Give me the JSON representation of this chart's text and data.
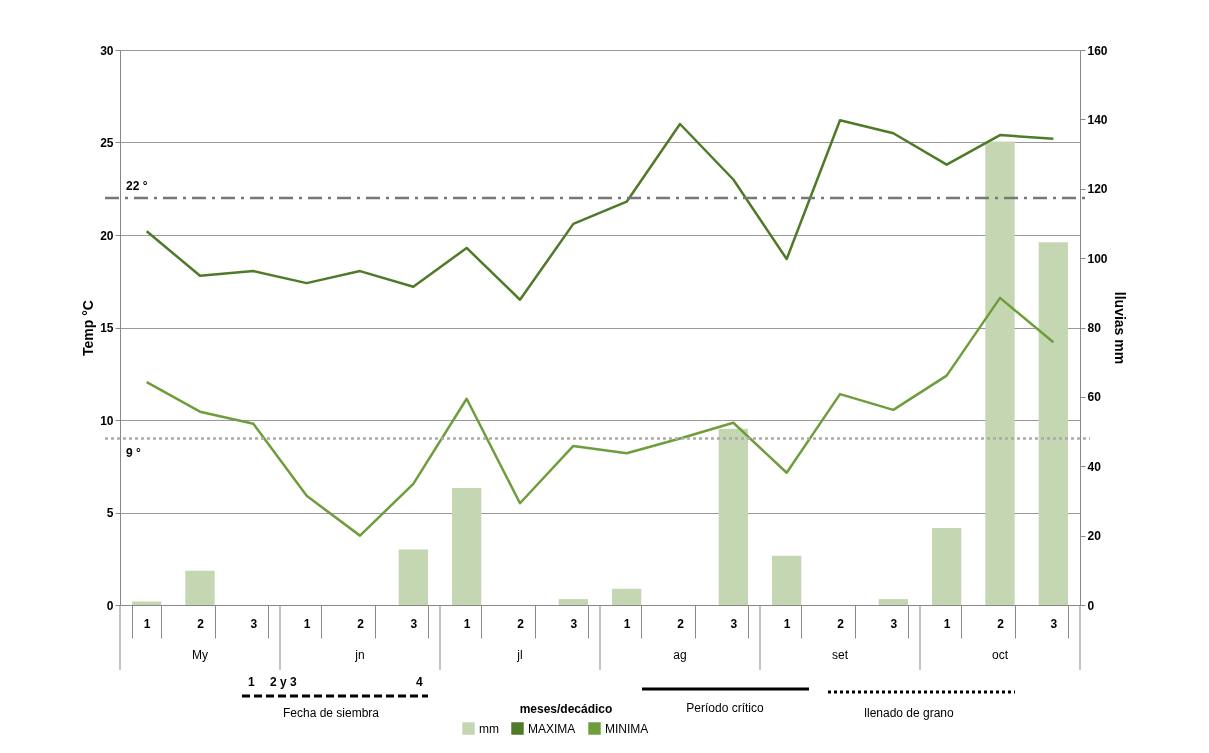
{
  "chart_data": {
    "type": "line",
    "categories": [
      "1",
      "2",
      "3",
      "1",
      "2",
      "3",
      "1",
      "2",
      "3",
      "1",
      "2",
      "3",
      "1",
      "2",
      "3",
      "1",
      "2",
      "3"
    ],
    "series": [
      {
        "name": "mm",
        "type": "bar",
        "axis": "y2",
        "color": "#c4d7b2",
        "values": [
          1,
          9.9,
          0,
          0,
          0,
          16,
          33.7,
          0,
          1.7,
          4.7,
          0,
          50.8,
          14.2,
          0,
          1.7,
          22.2,
          133.6,
          104.6
        ]
      },
      {
        "name": "MAXIMA",
        "color": "#4f7a28",
        "values": [
          20.2,
          17.8,
          18.05,
          17.4,
          18.05,
          17.2,
          19.3,
          16.5,
          20.6,
          21.8,
          26.0,
          23.0,
          18.7,
          26.2,
          25.5,
          23.8,
          25.4,
          25.2
        ]
      },
      {
        "name": "MINIMA",
        "color": "#6e9e3c",
        "values": [
          12.05,
          10.45,
          9.8,
          5.9,
          3.75,
          6.55,
          11.15,
          5.5,
          8.6,
          8.2,
          9.0,
          9.85,
          7.15,
          11.4,
          10.55,
          12.4,
          16.6,
          14.2
        ]
      }
    ],
    "ylabel": "Temp °C",
    "y2label": "lluvias mm",
    "ylim": [
      0,
      30
    ],
    "yticks": [
      0,
      5,
      10,
      15,
      20,
      25,
      30
    ],
    "y2lim": [
      0,
      160
    ],
    "y2ticks": [
      0,
      20,
      40,
      60,
      80,
      100,
      120,
      140,
      160
    ],
    "ref_lines": [
      {
        "axis": "y",
        "value": 22,
        "label": "22 °",
        "color": "#777777",
        "line_style": "dashed"
      },
      {
        "axis": "y",
        "value": 9,
        "label": "9 °",
        "color": "#aaaaaa",
        "line_style": "dotted"
      }
    ],
    "annotations": [
      "My",
      "jn",
      "jl",
      "ag",
      "set",
      "oct",
      "1",
      "2 y 3",
      "4",
      "Fecha de siembra",
      "Período crítico",
      "llenado de grano",
      "meses/decádico"
    ],
    "grid": "y",
    "legend": "bottom",
    "marker": "none"
  }
}
